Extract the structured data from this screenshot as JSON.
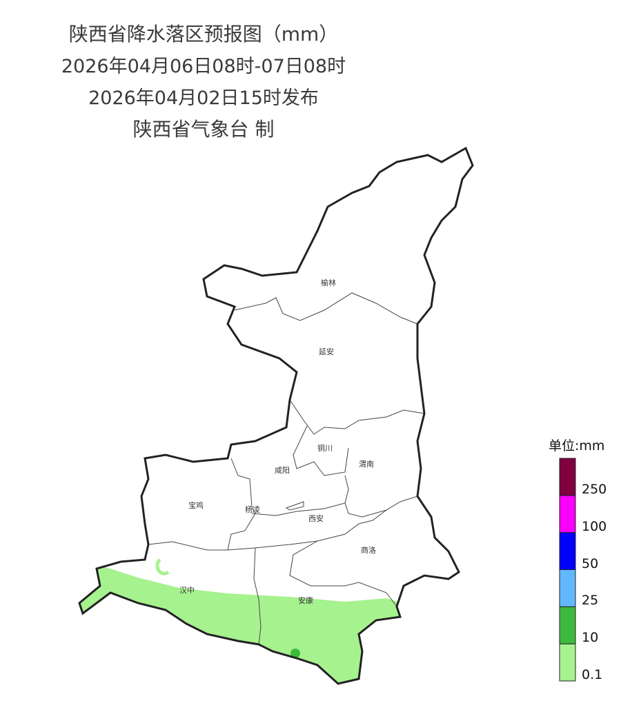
{
  "header": {
    "title": "陕西省降水落区预报图（mm）",
    "period": "2026年04月06日08时-07日08时",
    "issued": "2026年04月02日15时发布",
    "producer": "陕西省气象台 制"
  },
  "map": {
    "region": "陕西省",
    "cities": [
      "榆林",
      "延安",
      "铜川",
      "咸阳",
      "渭南",
      "宝鸡",
      "杨凌",
      "西安",
      "商洛",
      "汉中",
      "安康"
    ],
    "precip_areas": [
      {
        "level": "0.1-10",
        "where": "汉中、安康南部"
      },
      {
        "level": "10-25",
        "where": "安康南部局地"
      }
    ]
  },
  "legend": {
    "title": "单位:mm",
    "bins": [
      {
        "label": "0.1",
        "color": "#a6f28f"
      },
      {
        "label": "10",
        "color": "#3dba3d"
      },
      {
        "label": "25",
        "color": "#61b8ff"
      },
      {
        "label": "50",
        "color": "#0000fe"
      },
      {
        "label": "100",
        "color": "#fa00fa"
      },
      {
        "label": "250",
        "color": "#800040"
      }
    ]
  }
}
